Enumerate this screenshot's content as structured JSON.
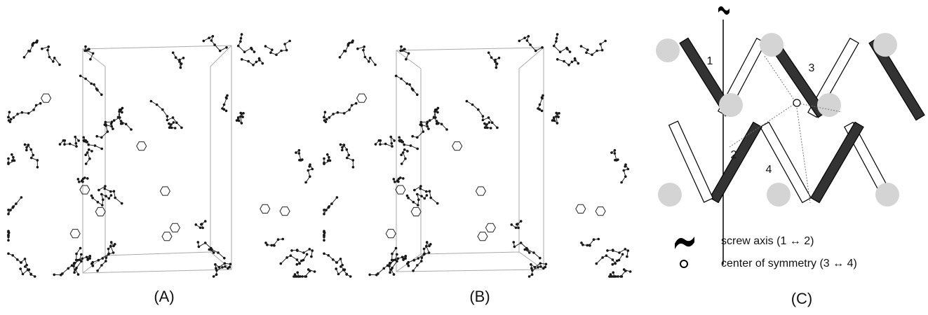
{
  "panels": {
    "a": {
      "label": "(A)"
    },
    "b": {
      "label": "(B)"
    },
    "c": {
      "label": "(C)",
      "molecule_numbers": [
        "1",
        "2",
        "3",
        "4"
      ],
      "legend": [
        "screw axis (1 ↔ 2)",
        "center of symmetry (3 ↔ 4)"
      ]
    }
  }
}
